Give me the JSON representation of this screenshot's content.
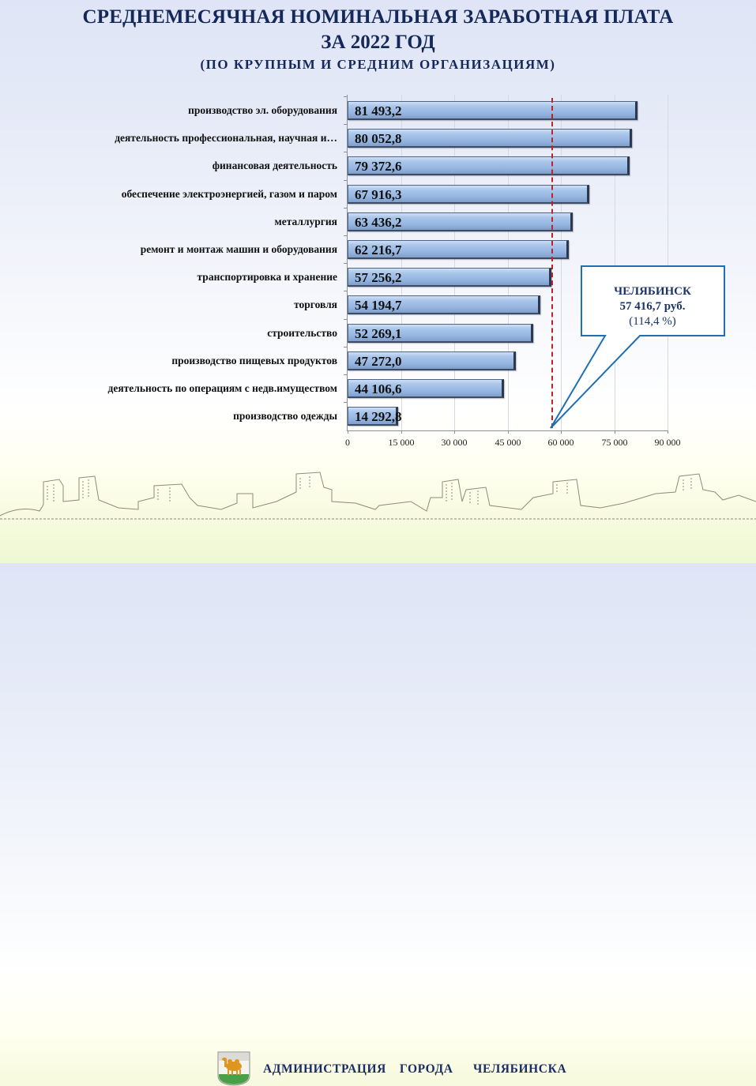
{
  "header": {
    "title_line1": "СРЕДНЕМЕСЯЧНАЯ НОМИНАЛЬНАЯ ЗАРАБОТНАЯ ПЛАТА",
    "title_line2": "ЗА 2022 ГОД",
    "subtitle": "(ПО КРУПНЫМ И СРЕДНИМ ОРГАНИЗАЦИЯМ)"
  },
  "chart_data": {
    "type": "bar",
    "orientation": "horizontal",
    "title": "СРЕДНЕМЕСЯЧНАЯ НОМИНАЛЬНАЯ ЗАРАБОТНАЯ ПЛАТА ЗА 2022 ГОД (ПО КРУПНЫМ И СРЕДНИМ ОРГАНИЗАЦИЯМ)",
    "xlabel": "",
    "ylabel": "",
    "categories": [
      "производство эл. оборудования",
      "деятельность профессиональная, научная и…",
      "финансовая деятельность",
      "обеспечение электроэнергией, газом и паром",
      "металлургия",
      "ремонт и монтаж машин и оборудования",
      "транспортировка и хранение",
      "торговля",
      "строительство",
      "производство пищевых продуктов",
      "деятельность по операциям с недв.имуществом",
      "производство одежды"
    ],
    "values": [
      81493.2,
      80052.8,
      79372.6,
      67916.3,
      63436.2,
      62216.7,
      57256.2,
      54194.7,
      52269.1,
      47272.0,
      44106.6,
      14292.8
    ],
    "value_labels": [
      "81 493,2",
      "80 052,8",
      "79 372,6",
      "67 916,3",
      "63 436,2",
      "62 216,7",
      "57 256,2",
      "54 194,7",
      "52 269,1",
      "47 272,0",
      "44 106,6",
      "14 292,8"
    ],
    "xlim": [
      0,
      90000
    ],
    "xticks": [
      0,
      15000,
      30000,
      45000,
      60000,
      75000,
      90000
    ],
    "xtick_labels": [
      "0",
      "15 000",
      "30 000",
      "45 000",
      "60 000",
      "75 000",
      "90 000"
    ],
    "grid": true,
    "reference_line": {
      "value": 57416.7,
      "style": "dashed",
      "color": "#c0202a"
    },
    "annotation": {
      "line1": "ЧЕЛЯБИНСК",
      "line2": "57 416,7 руб.",
      "line3": "(114,4 %)"
    },
    "bar_color": "#9bb9e2"
  },
  "footer": {
    "organization": "АДМИНИСТРАЦИЯ  ГОРОДА   ЧЕЛЯБИНСКА",
    "crest_icon": "chelyabinsk-coat-of-arms-camel"
  }
}
